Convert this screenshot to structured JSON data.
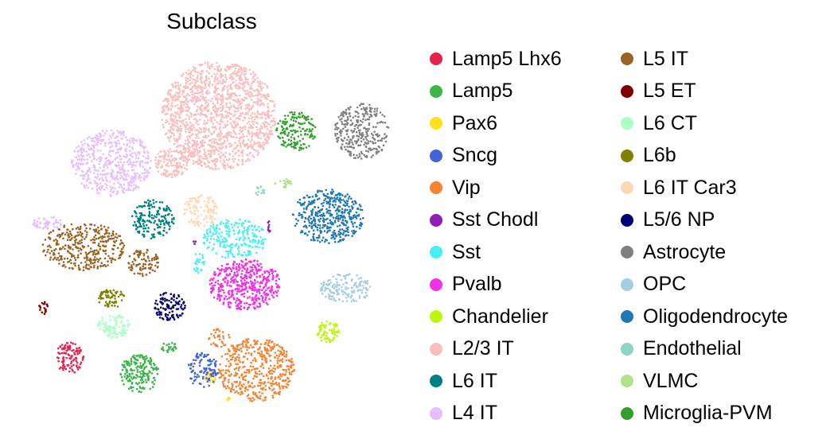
{
  "chart_data": {
    "type": "scatter",
    "title": "Subclass",
    "xlabel": "",
    "ylabel": "",
    "axes_visible": false,
    "grid": false,
    "legend_position": "right",
    "legend_columns": 2,
    "series": [
      {
        "name": "Lamp5 Lhx6",
        "color": "#e8214d"
      },
      {
        "name": "Lamp5",
        "color": "#3ab54a"
      },
      {
        "name": "Pax6",
        "color": "#ffe119"
      },
      {
        "name": "Sncg",
        "color": "#4363d8"
      },
      {
        "name": "Vip",
        "color": "#f58231"
      },
      {
        "name": "Sst Chodl",
        "color": "#911eb4"
      },
      {
        "name": "Sst",
        "color": "#46f0f0"
      },
      {
        "name": "Pvalb",
        "color": "#f032e6"
      },
      {
        "name": "Chandelier",
        "color": "#bcf60c"
      },
      {
        "name": "L2/3 IT",
        "color": "#fabebe"
      },
      {
        "name": "L6 IT",
        "color": "#008080"
      },
      {
        "name": "L4 IT",
        "color": "#e6beff"
      },
      {
        "name": "L5 IT",
        "color": "#9a6324"
      },
      {
        "name": "L5 ET",
        "color": "#800000"
      },
      {
        "name": "L6 CT",
        "color": "#aaffc3"
      },
      {
        "name": "L6b",
        "color": "#808000"
      },
      {
        "name": "L6 IT Car3",
        "color": "#ffd8b1"
      },
      {
        "name": "L5/6 NP",
        "color": "#000075"
      },
      {
        "name": "Astrocyte",
        "color": "#808080"
      },
      {
        "name": "OPC",
        "color": "#a6cee3"
      },
      {
        "name": "Oligodendrocyte",
        "color": "#1f78b4"
      },
      {
        "name": "Endothelial",
        "color": "#8fd3c6"
      },
      {
        "name": "VLMC",
        "color": "#b2df8a"
      },
      {
        "name": "Microglia-PVM",
        "color": "#33a02c"
      }
    ]
  }
}
